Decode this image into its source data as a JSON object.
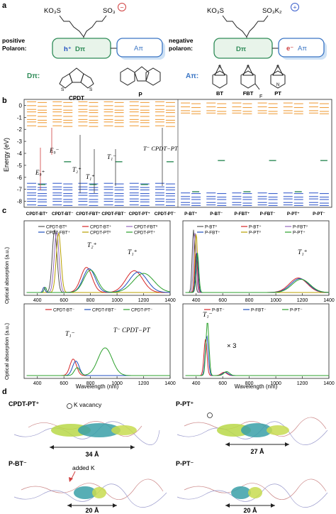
{
  "panel_a": {
    "label": "a",
    "left_top_left": "KO₃S",
    "left_top_right": "SO₃",
    "left_charge": "−",
    "right_top_left": "KO₃S",
    "right_top_right": "SO₃K₂",
    "right_charge": "+",
    "pos_label_1": "positive",
    "pos_label_2": "Polaron:",
    "neg_label_1": "negative",
    "neg_label_2": "polaron:",
    "box_hplus": "h⁺",
    "box_dpi": "Dπ",
    "box_api": "Aπ",
    "box_eminus": "e⁻",
    "dpi_key": "Dπ:",
    "api_key": "Aπ:",
    "mol_cpdt": "CPDT",
    "mol_p": "P",
    "mol_bt": "BT",
    "mol_fbt": "FBT",
    "mol_pt": "PT",
    "atom_s": "S",
    "atom_n": "N",
    "atom_f": "F"
  },
  "panel_b": {
    "label": "b",
    "ylabel": "Energy (eV)",
    "ylim": [
      -8.5,
      0.5
    ],
    "yticks": [
      "0",
      "-1",
      "-2",
      "-3",
      "-4",
      "-5",
      "-6",
      "-7",
      "-8"
    ],
    "categories": [
      "CPDT-BT⁺",
      "CPDT-BT⁻",
      "CPDT-FBT⁺",
      "CPDT-FBT⁻",
      "CPDT-PT⁺",
      "CPDT-PT⁻",
      "P-BT⁺",
      "P-BT⁻",
      "P-FBT⁺",
      "P-FBT⁻",
      "P-PT⁺",
      "P-PT⁻"
    ],
    "annotations": {
      "eg_plus": "E₉⁺",
      "eg_minus": "E₉⁻",
      "t2_plus": "T₂⁺",
      "t1_plus": "T₁⁺",
      "t1_minus": "T₁⁻",
      "tcpdt": "T⁻ CPDT−PT"
    },
    "colors": {
      "occupied": "#3a5fcd",
      "unoccupied": "#f0a040",
      "single": "#2e8b57",
      "arrow": "#d04040"
    }
  },
  "panel_c": {
    "label": "c",
    "ylabel": "Optical absorption (a.u.)",
    "xlabel": "Wavelength (nm)",
    "xticks": [
      "400",
      "600",
      "800",
      "1000",
      "1200",
      "1400"
    ],
    "top_left_legend": [
      "CPDT-BT⁰",
      "CPDT-BT⁺",
      "CPDT-FBT⁰",
      "CPDT-FBT⁺",
      "CPDT-PT⁰",
      "CPDT-PT⁺"
    ],
    "top_right_legend": [
      "P-BT⁰",
      "P-BT⁺",
      "P-FBT⁰",
      "P-FBT⁺",
      "P-PT⁰",
      "P-PT⁺"
    ],
    "bottom_left_legend": [
      "CPDT-BT⁻",
      "CPDT-FBT⁻",
      "CPDT-PT⁻"
    ],
    "bottom_right_legend": [
      "P-BT⁻",
      "P-FBT⁻",
      "P-PT⁻"
    ],
    "peak_t2_plus": "T₂⁺",
    "peak_t1_plus": "T₁⁺",
    "peak_t1_minus": "T₁⁻",
    "peak_tcpdt": "T⁻ CPDT−PT",
    "times_three": "× 3",
    "colors": {
      "bt": "#d62728",
      "fbt": "#1f4fbf",
      "pt": "#2ca02c",
      "neutral_bt": "#555555",
      "neutral_fbt": "#9467bd",
      "neutral_pt": "#b8a000"
    }
  },
  "panel_d": {
    "label": "d",
    "tl_title": "CPDT-PT⁺",
    "tl_note": "K vacancy",
    "tl_length": "34 Å",
    "tr_title": "P-PT⁺",
    "tr_length": "27 Å",
    "bl_title": "P-BT⁻",
    "bl_note": "added K",
    "bl_length": "20 Å",
    "br_title": "P-PT⁻",
    "br_length": "20 Å"
  }
}
